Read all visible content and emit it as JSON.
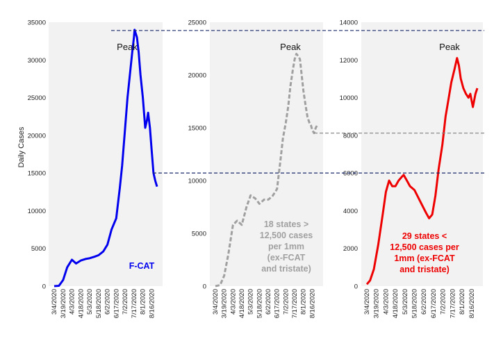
{
  "chart_data": [
    {
      "type": "line",
      "ylabel": "Daily Cases",
      "ylim": [
        0,
        35000
      ],
      "yticks": [
        0,
        5000,
        10000,
        15000,
        20000,
        25000,
        30000,
        35000
      ],
      "x_tick_labels": [
        "3/4/2020",
        "3/19/2020",
        "4/3/2020",
        "4/18/2020",
        "5/3/2020",
        "5/18/2020",
        "6/2/2020",
        "6/17/2020",
        "7/2/2020",
        "7/17/2020",
        "8/1/2020",
        "8/16/2020"
      ],
      "peak_label": "Peak",
      "annotation_lines": [
        "F-CAT"
      ],
      "color": "#0000ee",
      "line_style": "solid",
      "grid": false,
      "series": [
        {
          "x": [
            "3/4/2020",
            "3/12/2020",
            "3/19/2020",
            "3/26/2020",
            "4/3/2020",
            "4/10/2020",
            "4/18/2020",
            "4/26/2020",
            "5/3/2020",
            "5/11/2020",
            "5/18/2020",
            "5/26/2020",
            "6/2/2020",
            "6/9/2020",
            "6/17/2020",
            "6/23/2020",
            "6/27/2020",
            "7/2/2020",
            "7/6/2020",
            "7/10/2020",
            "7/14/2020",
            "7/17/2020",
            "7/18/2020",
            "7/20/2020",
            "7/22/2020",
            "7/25/2020",
            "7/28/2020",
            "8/1/2020",
            "8/3/2020",
            "8/5/2020",
            "8/8/2020",
            "8/10/2020",
            "8/13/2020",
            "8/16/2020",
            "8/19/2020",
            "8/22/2020",
            "8/25/2020"
          ],
          "y": [
            0,
            50,
            800,
            2500,
            3500,
            3000,
            3400,
            3600,
            3700,
            3900,
            4100,
            4600,
            5500,
            7500,
            9000,
            13000,
            16000,
            21000,
            25000,
            28000,
            31000,
            33000,
            34000,
            33500,
            33000,
            31000,
            28000,
            25000,
            23000,
            21000,
            22000,
            23000,
            21000,
            18000,
            15000,
            14000,
            13200
          ]
        }
      ]
    },
    {
      "type": "line",
      "ylim": [
        0,
        25000
      ],
      "yticks": [
        0,
        5000,
        10000,
        15000,
        20000,
        25000
      ],
      "x_tick_labels": [
        "3/4/2020",
        "3/19/2020",
        "4/3/2020",
        "4/18/2020",
        "5/3/2020",
        "5/18/2020",
        "6/2/2020",
        "6/17/2020",
        "7/2/2020",
        "7/17/2020",
        "8/1/2020",
        "8/16/2020"
      ],
      "peak_label": "Peak",
      "annotation_lines": [
        "18 states >",
        "12,500 cases",
        "per 1mm",
        "(ex-FCAT",
        "and tristate)"
      ],
      "color": "#a0a0a0",
      "line_style": "dashed",
      "grid": false,
      "series": [
        {
          "x": [
            "3/4/2020",
            "3/12/2020",
            "3/19/2020",
            "3/26/2020",
            "4/3/2020",
            "4/10/2020",
            "4/18/2020",
            "4/26/2020",
            "5/3/2020",
            "5/11/2020",
            "5/18/2020",
            "5/26/2020",
            "6/2/2020",
            "6/9/2020",
            "6/17/2020",
            "6/23/2020",
            "6/27/2020",
            "7/2/2020",
            "7/6/2020",
            "7/10/2020",
            "7/14/2020",
            "7/17/2020",
            "7/20/2020",
            "7/23/2020",
            "7/26/2020",
            "7/29/2020",
            "8/1/2020",
            "8/5/2020",
            "8/8/2020",
            "8/11/2020",
            "8/14/2020",
            "8/16/2020",
            "8/19/2020",
            "8/22/2020",
            "8/25/2020"
          ],
          "y": [
            0,
            100,
            1000,
            3000,
            5800,
            6200,
            5800,
            7500,
            8600,
            8300,
            7800,
            8200,
            8200,
            8500,
            9200,
            12000,
            14000,
            15500,
            17000,
            19000,
            20500,
            21500,
            22000,
            21800,
            21500,
            20000,
            18500,
            17000,
            16000,
            15500,
            15200,
            14800,
            14500,
            15000,
            15300
          ]
        }
      ]
    },
    {
      "type": "line",
      "ylim": [
        0,
        14000
      ],
      "yticks": [
        0,
        2000,
        4000,
        6000,
        8000,
        10000,
        12000,
        14000
      ],
      "x_tick_labels": [
        "3/4/2020",
        "3/19/2020",
        "4/3/2020",
        "4/18/2020",
        "5/3/2020",
        "5/18/2020",
        "6/2/2020",
        "6/17/2020",
        "7/2/2020",
        "7/17/2020",
        "8/1/2020",
        "8/16/2020"
      ],
      "peak_label": "Peak",
      "annotation_lines": [
        "29 states <",
        "12,500 cases per",
        "1mm (ex-FCAT",
        "and tristate)"
      ],
      "color": "#ee0000",
      "line_style": "solid",
      "grid": false,
      "series": [
        {
          "x": [
            "3/4/2020",
            "3/9/2020",
            "3/15/2020",
            "3/22/2020",
            "3/29/2020",
            "4/3/2020",
            "4/8/2020",
            "4/13/2020",
            "4/18/2020",
            "4/23/2020",
            "4/28/2020",
            "5/1/2020",
            "5/6/2020",
            "5/11/2020",
            "5/18/2020",
            "5/24/2020",
            "5/30/2020",
            "6/5/2020",
            "6/10/2020",
            "6/15/2020",
            "6/20/2020",
            "6/25/2020",
            "7/1/2020",
            "7/6/2020",
            "7/11/2020",
            "7/15/2020",
            "7/20/2020",
            "7/24/2020",
            "7/27/2020",
            "7/30/2020",
            "8/3/2020",
            "8/7/2020",
            "8/11/2020",
            "8/14/2020",
            "8/18/2020",
            "8/22/2020",
            "8/25/2020"
          ],
          "y": [
            100,
            300,
            900,
            2200,
            3800,
            5000,
            5600,
            5300,
            5300,
            5600,
            5800,
            5900,
            5600,
            5300,
            5100,
            4700,
            4300,
            3900,
            3600,
            3800,
            4800,
            6200,
            7500,
            9000,
            10000,
            10800,
            11500,
            12100,
            11700,
            11000,
            10500,
            10200,
            10000,
            10200,
            9500,
            10200,
            10500
          ]
        }
      ]
    }
  ]
}
